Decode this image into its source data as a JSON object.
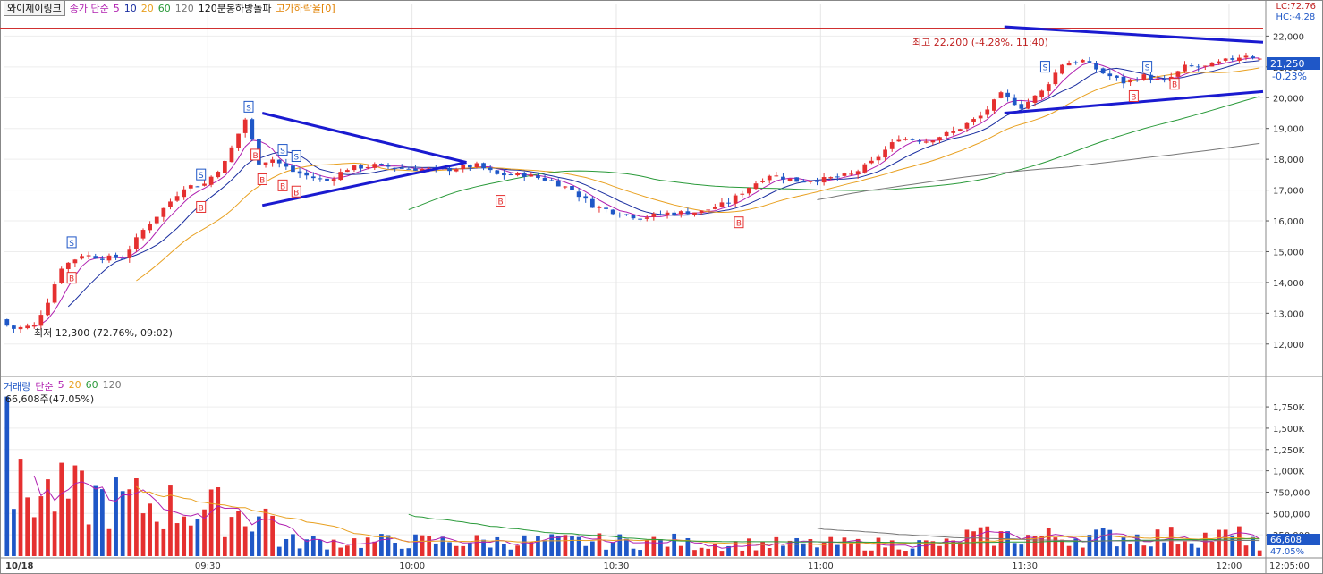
{
  "header": {
    "stock_name": "와이제이링크",
    "ma_label": "종가 단순",
    "ma_periods": [
      "5",
      "10",
      "20",
      "60",
      "120"
    ],
    "indicator_1": "120분봉하방돌파",
    "indicator_2": "고가하락율[0]",
    "lc_label": "LC:72.76",
    "hc_label": "HC:-4.28"
  },
  "price_panel": {
    "current_price": "21,250",
    "change_pct": "-0.23%",
    "high_annotation": "최고 22,200 (-4.28%, 11:40)",
    "low_annotation": "최저 12,300 (72.76%, 09:02)",
    "high_level": 22200,
    "low_level": 12300
  },
  "volume_panel": {
    "label": "거래량",
    "ma_label": "단순",
    "ma_periods": [
      "5",
      "20",
      "60",
      "120"
    ],
    "last_volume": "66,608주(47.05%)",
    "last_volume_tag": "66,608",
    "last_volume_pct_tag": "47.05%"
  },
  "colors": {
    "up": "#e53030",
    "down": "#1f57c7",
    "ma5": "#b020b0",
    "ma10": "#1a2ea0",
    "ma20": "#e8a020",
    "ma60": "#2a9a3a",
    "ma120": "#777777",
    "trend": "#1a1ad0",
    "ref_high": "#d03030",
    "ref_low": "#1a1a90"
  },
  "chart_data": {
    "type": "candlestick",
    "y_ticks": [
      "22,000",
      "21,000",
      "20,000",
      "19,000",
      "18,000",
      "17,000",
      "16,000",
      "15,000",
      "14,000",
      "13,000",
      "12,000"
    ],
    "y_tick_values": [
      22000,
      21000,
      20000,
      19000,
      18000,
      17000,
      16000,
      15000,
      14000,
      13000,
      12000
    ],
    "price_range": [
      11500,
      22650
    ],
    "volume_ticks": [
      "1,750K",
      "1,500K",
      "1,250K",
      "1,000K",
      "750,000",
      "500,000",
      "250,000"
    ],
    "volume_tick_values": [
      1750000,
      1500000,
      1250000,
      1000000,
      750000,
      500000,
      250000
    ],
    "volume_range": [
      0,
      1950000
    ],
    "x_labels": [
      "10/18",
      "09:30",
      "10:00",
      "10:30",
      "11:00",
      "11:30",
      "12:00",
      "12:05:00"
    ],
    "x_label_minutes": [
      0,
      30,
      60,
      90,
      120,
      150,
      180,
      185
    ],
    "minute_start": 0,
    "minute_end": 185,
    "price_keypoints": [
      [
        0,
        12700
      ],
      [
        2,
        12500
      ],
      [
        5,
        12600
      ],
      [
        7,
        13400
      ],
      [
        9,
        14500
      ],
      [
        12,
        14900
      ],
      [
        15,
        14800
      ],
      [
        18,
        14800
      ],
      [
        21,
        15700
      ],
      [
        24,
        16400
      ],
      [
        27,
        17100
      ],
      [
        30,
        17200
      ],
      [
        33,
        17900
      ],
      [
        36,
        19300
      ],
      [
        38,
        17900
      ],
      [
        40,
        18000
      ],
      [
        43,
        17600
      ],
      [
        46,
        17400
      ],
      [
        48,
        17300
      ],
      [
        51,
        17700
      ],
      [
        55,
        17800
      ],
      [
        60,
        17700
      ],
      [
        65,
        17650
      ],
      [
        70,
        17800
      ],
      [
        73,
        17500
      ],
      [
        77,
        17500
      ],
      [
        81,
        17300
      ],
      [
        84,
        17000
      ],
      [
        87,
        16500
      ],
      [
        90,
        16300
      ],
      [
        94,
        16100
      ],
      [
        98,
        16250
      ],
      [
        103,
        16300
      ],
      [
        107,
        16600
      ],
      [
        110,
        17100
      ],
      [
        113,
        17500
      ],
      [
        117,
        17300
      ],
      [
        121,
        17350
      ],
      [
        125,
        17500
      ],
      [
        128,
        17900
      ],
      [
        132,
        18700
      ],
      [
        136,
        18600
      ],
      [
        140,
        18900
      ],
      [
        144,
        19400
      ],
      [
        147,
        20100
      ],
      [
        150,
        19700
      ],
      [
        153,
        20200
      ],
      [
        156,
        21100
      ],
      [
        159,
        21200
      ],
      [
        162,
        20800
      ],
      [
        165,
        20500
      ],
      [
        168,
        20700
      ],
      [
        171,
        20500
      ],
      [
        174,
        21000
      ],
      [
        177,
        21000
      ],
      [
        180,
        21200
      ],
      [
        183,
        21400
      ],
      [
        185,
        21250
      ]
    ],
    "bar_count": 185,
    "volume_first_bar": 1870000,
    "last_volume": 66608
  }
}
